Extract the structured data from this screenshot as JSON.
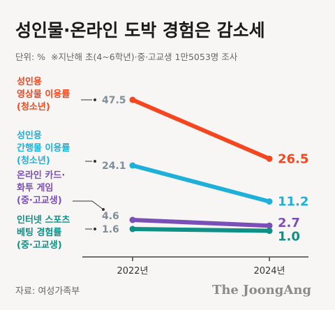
{
  "header": {
    "title": "성인물·온라인 도박 경험은 감소세",
    "unit_note": "단위: %  ※지난해 초(4~6학년)·중·고교생 1만5053명 조사"
  },
  "footer": {
    "source": "자료: 여성가족부",
    "brand": "The JoongAng"
  },
  "colors": {
    "background": "#f7f6f4",
    "axis": "#444444",
    "leader": "#333333"
  },
  "chart_data": {
    "type": "line",
    "x": [
      "2022년",
      "2024년"
    ],
    "series": [
      {
        "name": "성인용 영상물 이용률 (청소년)",
        "label_lines": [
          "성인용",
          "영상물 이용률",
          "(청소년)"
        ],
        "values": [
          47.5,
          26.5
        ],
        "start_label": "47.5",
        "end_label": "26.5",
        "color": "#f4471f"
      },
      {
        "name": "성인용 간행물 이용률 (청소년)",
        "label_lines": [
          "성인용",
          "간행물 이용률",
          "(청소년)"
        ],
        "values": [
          24.1,
          11.2
        ],
        "start_label": "24.1",
        "end_label": "11.2",
        "color": "#1fb0d9"
      },
      {
        "name": "온라인 카드·화투 게임 (중·고교생)",
        "label_lines": [
          "온라인 카드·",
          "화투 게임",
          "(중·고교생)"
        ],
        "values": [
          4.6,
          2.7
        ],
        "start_label": "4.6",
        "end_label": "2.7",
        "color": "#7b4fb8"
      },
      {
        "name": "인터넷 스포츠 베팅 경험률 (중·고교생)",
        "label_lines": [
          "인터넷 스포츠",
          "베팅 경험률",
          "(중·고교생)"
        ],
        "values": [
          1.6,
          1.0
        ],
        "start_label": "1.6",
        "end_label": "1.0",
        "color": "#0f8f86"
      }
    ]
  }
}
